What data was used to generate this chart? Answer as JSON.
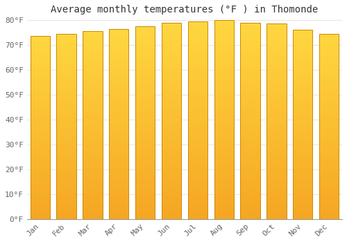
{
  "title": "Average monthly temperatures (°F ) in Thomonde",
  "months": [
    "Jan",
    "Feb",
    "Mar",
    "Apr",
    "May",
    "Jun",
    "Jul",
    "Aug",
    "Sep",
    "Oct",
    "Nov",
    "Dec"
  ],
  "values": [
    73.5,
    74.5,
    75.7,
    76.5,
    77.5,
    79.0,
    79.5,
    80.0,
    79.0,
    78.5,
    76.0,
    74.5
  ],
  "ylim": [
    0,
    80
  ],
  "yticks": [
    0,
    10,
    20,
    30,
    40,
    50,
    60,
    70,
    80
  ],
  "bar_color_bottom": "#F5A623",
  "bar_color_top": "#FFD740",
  "bar_edge_color": "#CC8800",
  "background_color": "#FFFFFF",
  "grid_color": "#E0E0E0",
  "title_fontsize": 10,
  "tick_fontsize": 8,
  "font_family": "monospace",
  "bar_width": 0.75
}
